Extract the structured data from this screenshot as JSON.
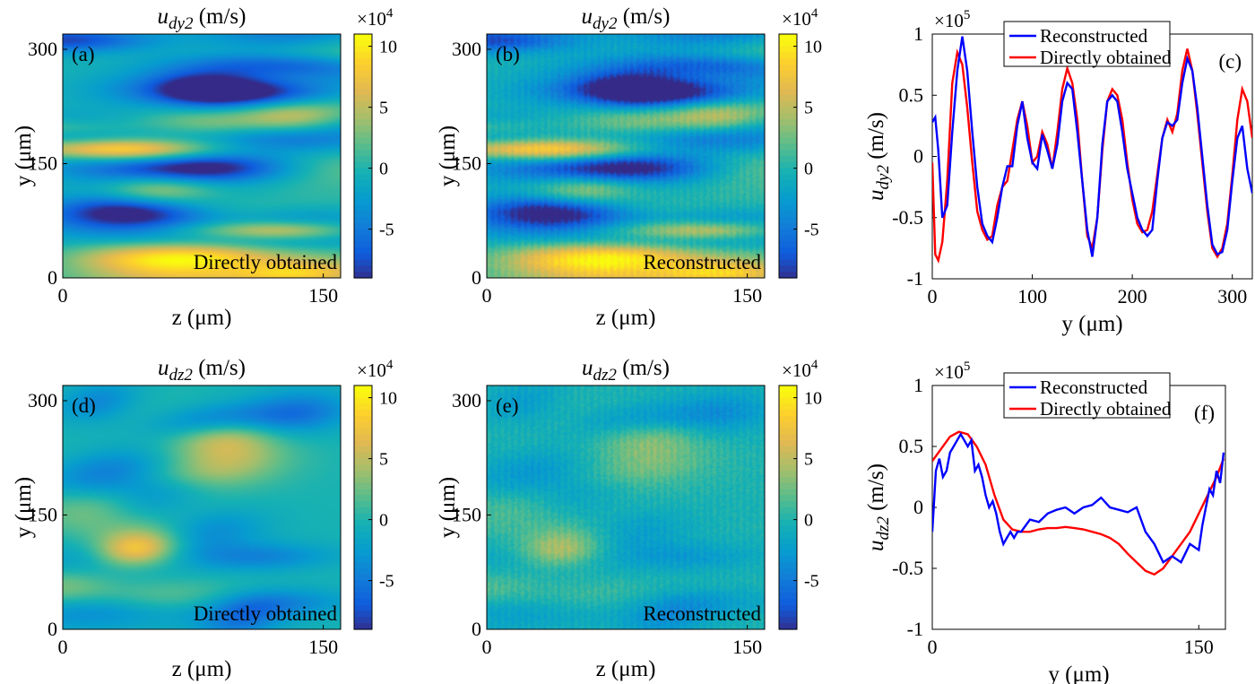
{
  "colors": {
    "reconstructed": "#0000ff",
    "directly_obtained": "#ff0000"
  },
  "chart_data": [
    {
      "type": "heatmap",
      "panel": "(a)",
      "title_main": "u",
      "title_sub": "dy2",
      "title_unit": " (m/s)",
      "xlabel": "z (μm)",
      "ylabel": "y (μm)",
      "xlim": [
        0,
        160
      ],
      "ylim": [
        0,
        320
      ],
      "xticks": [
        "0",
        "150"
      ],
      "yticks": [
        "0",
        "150",
        "300"
      ],
      "annotation": "Directly obtained",
      "colorbar": {
        "multiplier": "×10",
        "exponent": "4",
        "range": [
          -9,
          11
        ],
        "ticks": [
          "10",
          "5",
          "0",
          "-5"
        ],
        "colormap": "parula"
      },
      "field": "u_dy2",
      "noise": 0
    },
    {
      "type": "heatmap",
      "panel": "(b)",
      "title_main": "u",
      "title_sub": "dy2",
      "title_unit": " (m/s)",
      "xlabel": "z (μm)",
      "ylabel": "y (μm)",
      "xlim": [
        0,
        160
      ],
      "ylim": [
        0,
        320
      ],
      "xticks": [
        "0",
        "150"
      ],
      "yticks": [
        "0",
        "150",
        "300"
      ],
      "annotation": "Reconstructed",
      "colorbar": {
        "multiplier": "×10",
        "exponent": "4",
        "range": [
          -9,
          11
        ],
        "ticks": [
          "10",
          "5",
          "0",
          "-5"
        ],
        "colormap": "parula"
      },
      "field": "u_dy2",
      "noise": 0.12
    },
    {
      "type": "line",
      "panel": "(c)",
      "xlabel": "y (μm)",
      "ylabel_main": "u",
      "ylabel_sub": "dy2",
      "ylabel_unit": " (m/s)",
      "xlim": [
        0,
        320
      ],
      "ylim": [
        -1,
        1
      ],
      "xticks": [
        "0",
        "100",
        "200",
        "300"
      ],
      "yticks": [
        "1",
        "0.5",
        "0",
        "-0.5",
        "-1"
      ],
      "multiplier": "×10",
      "exponent": "5",
      "legend": [
        "Reconstructed",
        "Directly obtained"
      ],
      "legend_position": "top-right",
      "series": [
        {
          "name": "Reconstructed",
          "x": [
            0,
            3,
            6,
            10,
            15,
            20,
            25,
            30,
            35,
            40,
            45,
            50,
            55,
            60,
            65,
            70,
            75,
            80,
            85,
            90,
            95,
            100,
            105,
            110,
            115,
            120,
            125,
            130,
            135,
            140,
            145,
            150,
            155,
            160,
            165,
            170,
            175,
            180,
            185,
            190,
            195,
            200,
            205,
            210,
            215,
            220,
            225,
            230,
            235,
            240,
            245,
            250,
            255,
            260,
            265,
            270,
            275,
            280,
            285,
            290,
            295,
            300,
            305,
            310,
            315,
            320
          ],
          "y": [
            0.28,
            0.32,
            0.05,
            -0.5,
            -0.4,
            0.2,
            0.7,
            0.98,
            0.7,
            0.2,
            -0.25,
            -0.55,
            -0.65,
            -0.7,
            -0.5,
            -0.25,
            -0.08,
            -0.08,
            0.25,
            0.45,
            0.15,
            -0.05,
            -0.1,
            0.18,
            0.05,
            -0.1,
            0.1,
            0.45,
            0.6,
            0.55,
            0.2,
            -0.2,
            -0.6,
            -0.82,
            -0.5,
            0.1,
            0.45,
            0.5,
            0.45,
            0.2,
            -0.1,
            -0.3,
            -0.5,
            -0.6,
            -0.65,
            -0.6,
            -0.2,
            0.15,
            0.28,
            0.25,
            0.3,
            0.6,
            0.8,
            0.7,
            0.4,
            0,
            -0.4,
            -0.72,
            -0.8,
            -0.78,
            -0.6,
            -0.2,
            0.15,
            0.25,
            -0.1,
            -0.3
          ]
        },
        {
          "name": "Directly obtained",
          "x": [
            0,
            3,
            6,
            10,
            15,
            20,
            25,
            30,
            35,
            40,
            45,
            50,
            55,
            60,
            65,
            70,
            75,
            80,
            85,
            90,
            95,
            100,
            105,
            110,
            115,
            120,
            125,
            130,
            135,
            140,
            145,
            150,
            155,
            160,
            165,
            170,
            175,
            180,
            185,
            190,
            195,
            200,
            205,
            210,
            215,
            220,
            225,
            230,
            235,
            240,
            245,
            250,
            255,
            260,
            265,
            270,
            275,
            280,
            285,
            290,
            295,
            300,
            305,
            310,
            315,
            320
          ],
          "y": [
            -0.05,
            -0.8,
            -0.85,
            -0.7,
            -0.2,
            0.6,
            0.85,
            0.75,
            0.4,
            -0.05,
            -0.45,
            -0.6,
            -0.68,
            -0.65,
            -0.4,
            -0.25,
            -0.2,
            0.05,
            0.3,
            0.45,
            0.25,
            -0.05,
            0,
            0.2,
            0.1,
            -0.1,
            0.2,
            0.55,
            0.72,
            0.6,
            0.3,
            -0.2,
            -0.65,
            -0.75,
            -0.5,
            0.05,
            0.45,
            0.55,
            0.5,
            0.3,
            -0.05,
            -0.35,
            -0.55,
            -0.62,
            -0.6,
            -0.45,
            -0.15,
            0.15,
            0.3,
            0.2,
            0.35,
            0.7,
            0.88,
            0.7,
            0.35,
            -0.05,
            -0.45,
            -0.75,
            -0.82,
            -0.75,
            -0.55,
            -0.15,
            0.3,
            0.55,
            0.45,
            0.15
          ]
        }
      ]
    },
    {
      "type": "heatmap",
      "panel": "(d)",
      "title_main": "u",
      "title_sub": "dz2",
      "title_unit": " (m/s)",
      "xlabel": "z (μm)",
      "ylabel": "y (μm)",
      "xlim": [
        0,
        160
      ],
      "ylim": [
        0,
        320
      ],
      "xticks": [
        "0",
        "150"
      ],
      "yticks": [
        "0",
        "150",
        "300"
      ],
      "annotation": "Directly obtained",
      "colorbar": {
        "multiplier": "×10",
        "exponent": "4",
        "range": [
          -9,
          11
        ],
        "ticks": [
          "10",
          "5",
          "0",
          "-5"
        ],
        "colormap": "parula"
      },
      "field": "u_dz2",
      "noise": 0
    },
    {
      "type": "heatmap",
      "panel": "(e)",
      "title_main": "u",
      "title_sub": "dz2",
      "title_unit": " (m/s)",
      "xlabel": "z (μm)",
      "ylabel": "y (μm)",
      "xlim": [
        0,
        160
      ],
      "ylim": [
        0,
        320
      ],
      "xticks": [
        "0",
        "150"
      ],
      "yticks": [
        "0",
        "150",
        "300"
      ],
      "annotation": "Reconstructed",
      "colorbar": {
        "multiplier": "×10",
        "exponent": "4",
        "range": [
          -9,
          11
        ],
        "ticks": [
          "10",
          "5",
          "0",
          "-5"
        ],
        "colormap": "parula"
      },
      "field": "u_dz2",
      "noise": 0.15
    },
    {
      "type": "line",
      "panel": "(f)",
      "xlabel": "y (μm)",
      "ylabel_main": "u",
      "ylabel_sub": "dz2",
      "ylabel_unit": " (m/s)",
      "xlim": [
        0,
        165
      ],
      "ylim": [
        -1,
        1
      ],
      "xticks": [
        "0",
        "150"
      ],
      "yticks": [
        "1",
        "0.5",
        "0",
        "-0.5",
        "-1"
      ],
      "multiplier": "×10",
      "exponent": "5",
      "legend": [
        "Reconstructed",
        "Directly obtained"
      ],
      "legend_position": "top-center",
      "series": [
        {
          "name": "Reconstructed",
          "x": [
            0,
            2,
            4,
            6,
            8,
            10,
            12,
            14,
            16,
            18,
            20,
            22,
            24,
            26,
            28,
            30,
            32,
            34,
            36,
            38,
            40,
            42,
            44,
            46,
            48,
            50,
            55,
            60,
            65,
            70,
            75,
            80,
            85,
            90,
            95,
            100,
            105,
            110,
            115,
            120,
            125,
            130,
            135,
            140,
            145,
            150,
            152,
            154,
            156,
            158,
            160,
            162,
            164
          ],
          "y": [
            -0.2,
            0.3,
            0.4,
            0.25,
            0.3,
            0.45,
            0.5,
            0.55,
            0.6,
            0.55,
            0.5,
            0.55,
            0.3,
            0.35,
            0.25,
            0.1,
            0,
            0.05,
            -0.05,
            -0.2,
            -0.3,
            -0.25,
            -0.2,
            -0.25,
            -0.2,
            -0.2,
            -0.1,
            -0.12,
            -0.05,
            -0.02,
            0,
            -0.05,
            0,
            0.02,
            0.08,
            0,
            -0.02,
            -0.04,
            0,
            -0.2,
            -0.3,
            -0.45,
            -0.4,
            -0.45,
            -0.3,
            -0.35,
            -0.15,
            0,
            0.15,
            0.1,
            0.3,
            0.2,
            0.45
          ]
        },
        {
          "name": "Directly obtained",
          "x": [
            0,
            5,
            10,
            15,
            20,
            25,
            30,
            35,
            40,
            45,
            50,
            55,
            60,
            65,
            70,
            75,
            80,
            85,
            90,
            95,
            100,
            105,
            110,
            115,
            120,
            125,
            130,
            135,
            140,
            145,
            150,
            155,
            160,
            164
          ],
          "y": [
            0.38,
            0.48,
            0.58,
            0.62,
            0.6,
            0.5,
            0.35,
            0.1,
            -0.1,
            -0.18,
            -0.2,
            -0.2,
            -0.18,
            -0.17,
            -0.17,
            -0.16,
            -0.17,
            -0.18,
            -0.2,
            -0.22,
            -0.25,
            -0.3,
            -0.38,
            -0.45,
            -0.52,
            -0.55,
            -0.5,
            -0.4,
            -0.3,
            -0.2,
            -0.05,
            0.1,
            0.25,
            0.4
          ]
        }
      ]
    }
  ]
}
